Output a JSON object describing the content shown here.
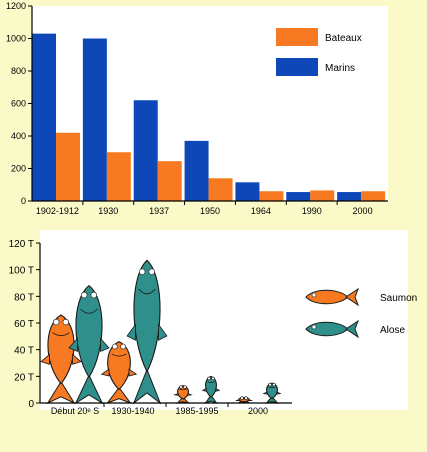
{
  "chart_data": [
    {
      "type": "bar",
      "categories": [
        "1902-1912",
        "1930",
        "1937",
        "1950",
        "1964",
        "1990",
        "2000"
      ],
      "series": [
        {
          "name": "Marins",
          "values": [
            1030,
            1000,
            620,
            370,
            115,
            55,
            55
          ],
          "color": "#0d47b8"
        },
        {
          "name": "Bateaux",
          "values": [
            420,
            300,
            245,
            140,
            60,
            65,
            60
          ],
          "color": "#f77a22"
        }
      ],
      "ylim": [
        0,
        1200
      ],
      "yticks": [
        "0",
        "200",
        "400",
        "600",
        "800",
        "1000",
        "1200"
      ],
      "legend": [
        "Bateaux",
        "Marins"
      ],
      "legend_position": "top-right",
      "grid": false
    },
    {
      "type": "pictograph",
      "categories": [
        "Début 20ᵉ S",
        "1930-1940",
        "1985-1995",
        "2000"
      ],
      "series": [
        {
          "name": "Saumon",
          "values": [
            66,
            46,
            13,
            4
          ],
          "color": "#f77a22"
        },
        {
          "name": "Alose",
          "values": [
            88,
            107,
            20,
            15
          ],
          "color": "#2f8f8a"
        }
      ],
      "ylim": [
        0,
        120
      ],
      "yticks": [
        "0",
        "20 T",
        "40 T",
        "60 T",
        "80 T",
        "100 T",
        "120 T"
      ],
      "legend": [
        "Saumon",
        "Alose"
      ],
      "legend_position": "right",
      "grid": false
    }
  ]
}
